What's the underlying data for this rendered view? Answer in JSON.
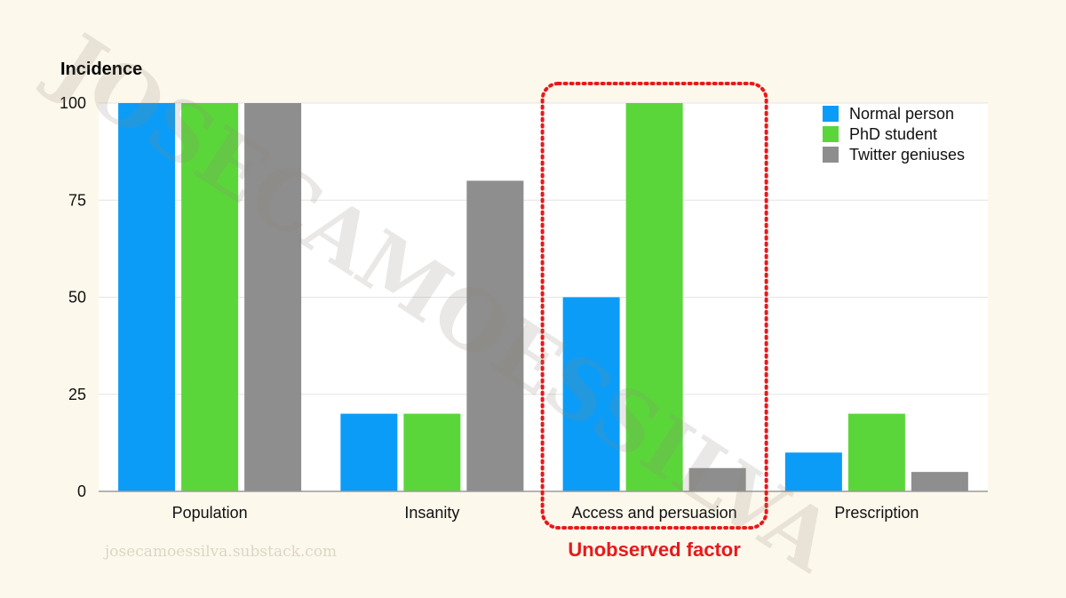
{
  "chart_data": {
    "type": "bar",
    "ylabel": "Incidence",
    "ylim": [
      0,
      100
    ],
    "yticks": [
      0,
      25,
      50,
      75,
      100
    ],
    "categories": [
      "Population",
      "Insanity",
      "Access and persuasion",
      "Prescription"
    ],
    "series": [
      {
        "name": "Normal person",
        "color": "#0b9cf7",
        "values": [
          100,
          20,
          50,
          10
        ]
      },
      {
        "name": "PhD student",
        "color": "#5bd63a",
        "values": [
          100,
          20,
          100,
          20
        ]
      },
      {
        "name": "Twitter geniuses",
        "color": "#8e8e8e",
        "values": [
          100,
          80,
          6,
          5
        ]
      }
    ],
    "grid": true,
    "legend_position": "top-right",
    "annotation": {
      "text": "Unobserved factor",
      "category": "Access and persuasion",
      "color": "#e8191b"
    }
  },
  "footer": {
    "site": "josecamoessilva.substack.com"
  },
  "watermark": {
    "text": "JOSECAMOESSILVA"
  }
}
